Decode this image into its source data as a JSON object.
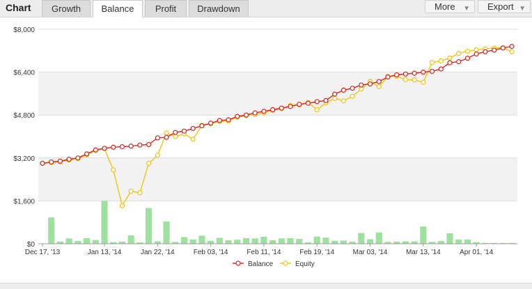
{
  "header": {
    "title": "Chart",
    "tabs": [
      {
        "label": "Growth",
        "active": false
      },
      {
        "label": "Balance",
        "active": true
      },
      {
        "label": "Profit",
        "active": false
      },
      {
        "label": "Drawdown",
        "active": false
      }
    ],
    "more_label": "More",
    "export_label": "Export"
  },
  "colors": {
    "balance": "#e0201b",
    "equity": "#f1c40f",
    "bars": "#9ee09e",
    "band": "#f2f2f2",
    "grid": "#dcdcdc"
  },
  "chart_data": {
    "type": "line",
    "y_ticks": [
      "$0",
      "$1,600",
      "$3,200",
      "$4,800",
      "$6,400",
      "$8,000"
    ],
    "ylim": [
      0,
      8000
    ],
    "x_tick_labels": [
      "Dec 17, '13",
      "Jan 13, '14",
      "Jan 22, '14",
      "Feb 03, '14",
      "Feb 11, '14",
      "Feb 19, '14",
      "Mar 03, '14",
      "Mar 13, '14",
      "Apr 01, '14"
    ],
    "x_tick_index": [
      0,
      7,
      13,
      19,
      25,
      31,
      37,
      43,
      49
    ],
    "n_points": 54,
    "grid": true,
    "legend_position": "bottom",
    "series": [
      {
        "name": "Balance",
        "type": "line",
        "values": [
          3000,
          3050,
          3080,
          3150,
          3200,
          3350,
          3500,
          3560,
          3600,
          3620,
          3640,
          3680,
          3700,
          3950,
          3970,
          4150,
          4200,
          4300,
          4400,
          4500,
          4600,
          4620,
          4750,
          4800,
          4880,
          4940,
          5000,
          5060,
          5120,
          5200,
          5240,
          5300,
          5340,
          5580,
          5730,
          5800,
          5920,
          5960,
          6050,
          6220,
          6300,
          6330,
          6360,
          6400,
          6430,
          6520,
          6750,
          6790,
          6920,
          7080,
          7160,
          7220,
          7300,
          7360
        ]
      },
      {
        "name": "Equity",
        "type": "line",
        "values": [
          3000,
          3030,
          3060,
          3120,
          3180,
          3320,
          3480,
          3550,
          2750,
          1420,
          1960,
          1900,
          3000,
          3300,
          4130,
          4000,
          4100,
          3900,
          4420,
          4480,
          4560,
          4580,
          4720,
          4780,
          4820,
          4880,
          4980,
          5040,
          5160,
          5180,
          5270,
          5000,
          5250,
          5420,
          5330,
          5500,
          5770,
          6050,
          5860,
          6240,
          6250,
          6120,
          6110,
          6020,
          6760,
          6820,
          6930,
          7100,
          7180,
          7230,
          7270,
          7300,
          7310,
          7160
        ]
      },
      {
        "name": "",
        "type": "bar",
        "values": [
          0,
          980,
          80,
          200,
          100,
          210,
          140,
          1600,
          60,
          80,
          310,
          50,
          1330,
          90,
          830,
          70,
          250,
          160,
          300,
          110,
          220,
          130,
          150,
          210,
          200,
          260,
          130,
          200,
          210,
          180,
          50,
          270,
          230,
          110,
          120,
          80,
          400,
          170,
          420,
          70,
          80,
          90,
          90,
          640,
          70,
          100,
          390,
          160,
          160,
          60,
          30,
          30,
          30,
          30
        ]
      }
    ]
  }
}
